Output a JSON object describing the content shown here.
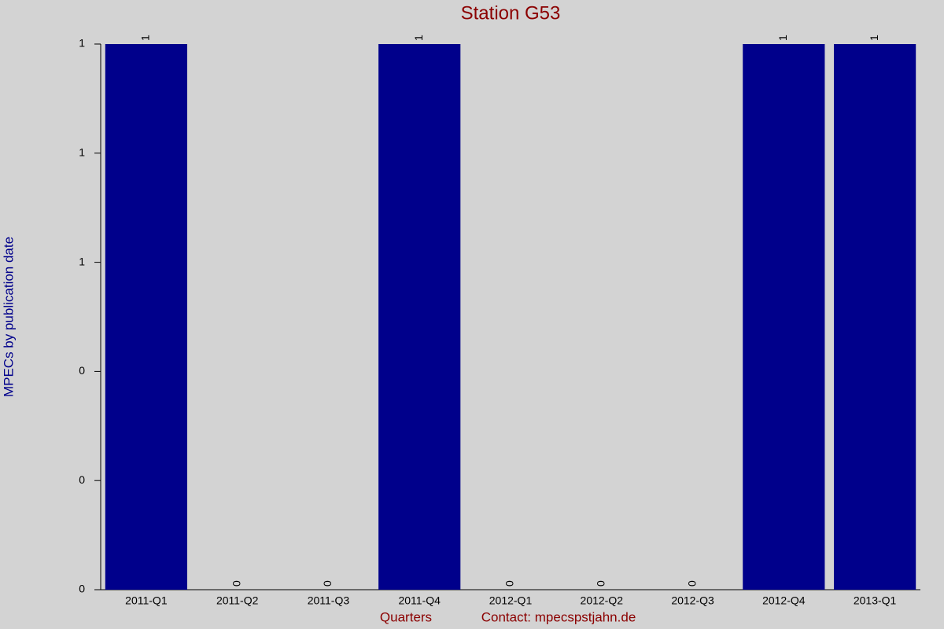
{
  "chart_data": {
    "type": "bar",
    "title": "Station G53",
    "x_label": "Quarters",
    "note": "Contact: mpecspstjahn.de",
    "y_label": "MPECs by publication date",
    "categories": [
      "2011-Q1",
      "2011-Q2",
      "2011-Q3",
      "2011-Q4",
      "2012-Q1",
      "2012-Q2",
      "2012-Q3",
      "2012-Q4",
      "2013-Q1"
    ],
    "values": [
      1,
      0,
      0,
      1,
      0,
      0,
      0,
      1,
      1
    ],
    "color": "#00008b",
    "ylim": [
      0,
      1
    ],
    "yticks": [
      0,
      {
        "value": 0.2,
        "label": "0"
      },
      {
        "value": 0.4,
        "label": "0"
      },
      {
        "value": 0.6,
        "label": "1"
      },
      {
        "value": 0.8,
        "label": "1"
      },
      1
    ]
  }
}
